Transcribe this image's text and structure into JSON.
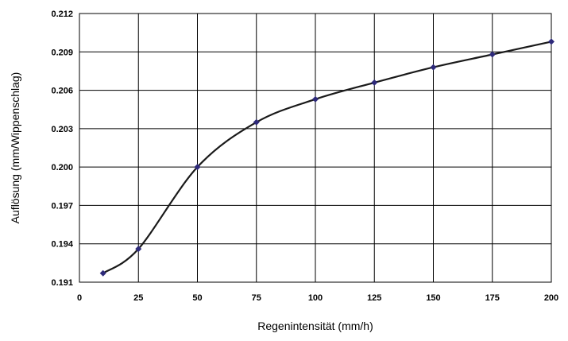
{
  "chart_data": {
    "type": "line",
    "xlabel": "Regenintensität (mm/h)",
    "ylabel": "Auflösung (mm/Wippenschlag)",
    "xlim": [
      0,
      200
    ],
    "ylim": [
      0.191,
      0.212
    ],
    "x_ticks": [
      "0",
      "25",
      "50",
      "75",
      "100",
      "125",
      "150",
      "175",
      "200"
    ],
    "y_ticks": [
      "0.191",
      "0.194",
      "0.197",
      "0.200",
      "0.203",
      "0.206",
      "0.209",
      "0.212"
    ],
    "grid": true,
    "series": [
      {
        "x": [
          10,
          25,
          50,
          75,
          100,
          125,
          150,
          175,
          200
        ],
        "y": [
          0.1917,
          0.1936,
          0.2,
          0.2035,
          0.2053,
          0.2066,
          0.2078,
          0.2088,
          0.2098
        ],
        "line_color": "#1a1a1a",
        "marker_color": "#2e2a7a"
      }
    ]
  }
}
